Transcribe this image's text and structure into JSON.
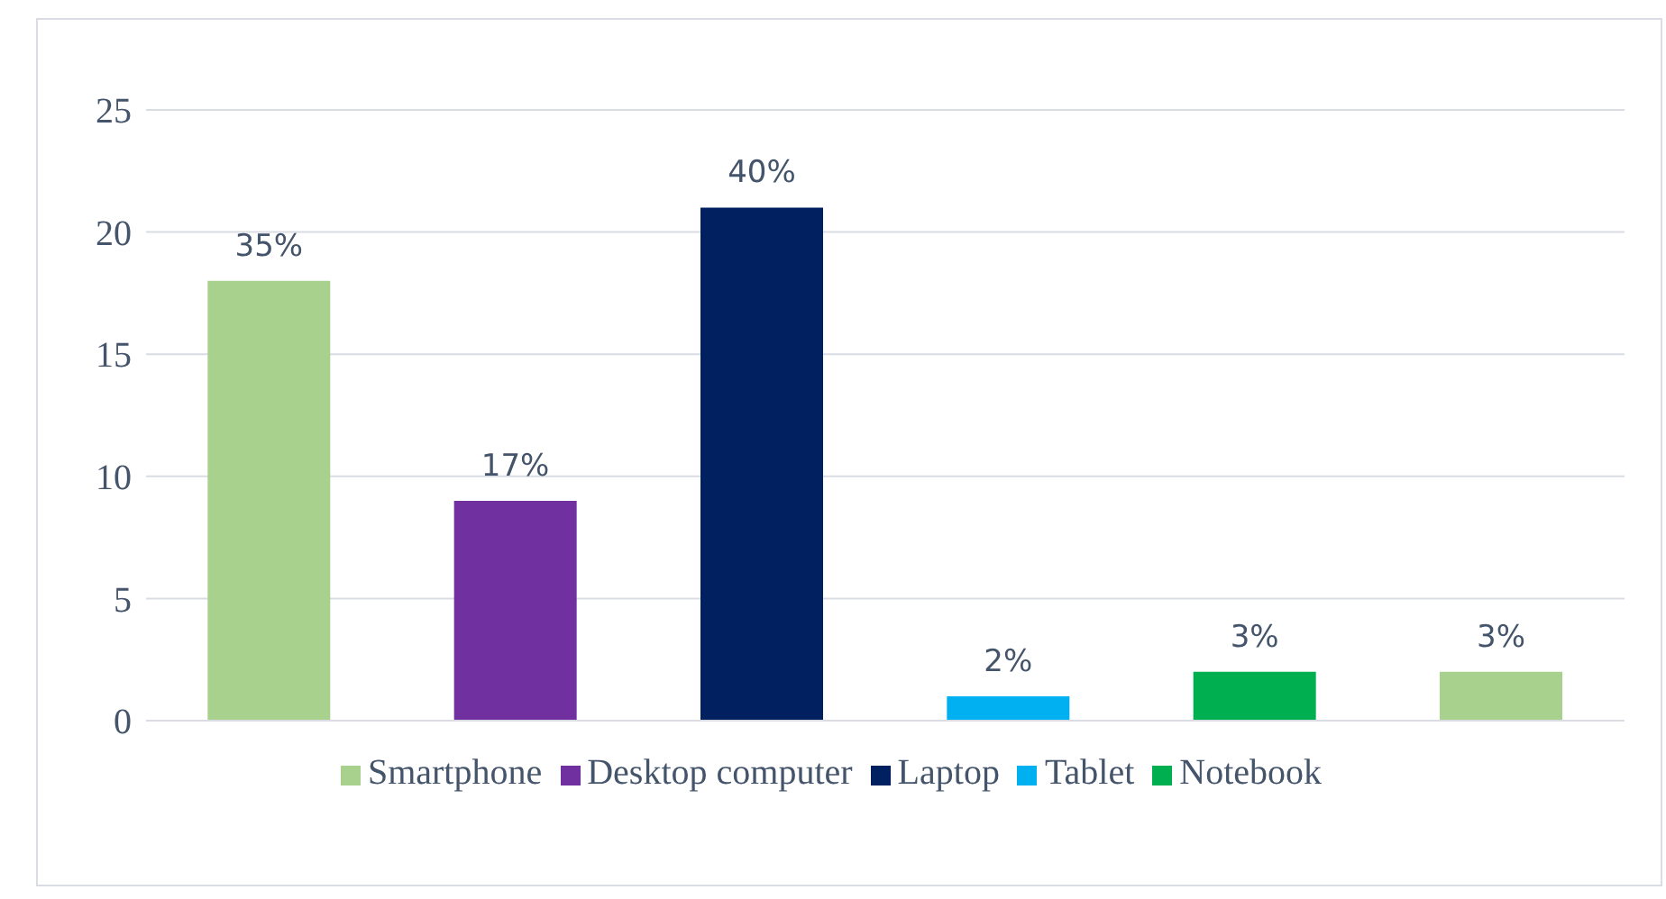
{
  "chart_data": {
    "type": "bar",
    "categories": [
      null,
      null,
      null,
      null,
      null,
      null
    ],
    "series": [
      {
        "name": "Smartphone",
        "color": "#a9d18e",
        "values": [
          18,
          null,
          null,
          null,
          null,
          null
        ]
      },
      {
        "name": "Desktop computer",
        "color": "#7030a0",
        "values": [
          null,
          9,
          null,
          null,
          null,
          null
        ]
      },
      {
        "name": "Laptop",
        "color": "#002060",
        "values": [
          null,
          null,
          21,
          null,
          null,
          null
        ]
      },
      {
        "name": "Tablet",
        "color": "#00b0f0",
        "values": [
          null,
          null,
          null,
          1,
          null,
          null
        ]
      },
      {
        "name": "Notebook",
        "color": "#00b050",
        "values": [
          null,
          null,
          null,
          null,
          2,
          null
        ]
      },
      {
        "color": "#a9d18e",
        "values": [
          null,
          null,
          null,
          null,
          null,
          2
        ]
      }
    ],
    "annotations": [
      "35%",
      "17%",
      "40%",
      "2%",
      "3%",
      "3%"
    ],
    "ylim": [
      0,
      25
    ],
    "yticks": [
      0,
      5,
      10,
      15,
      20,
      25
    ],
    "grid": "y",
    "legend": "bottom"
  }
}
